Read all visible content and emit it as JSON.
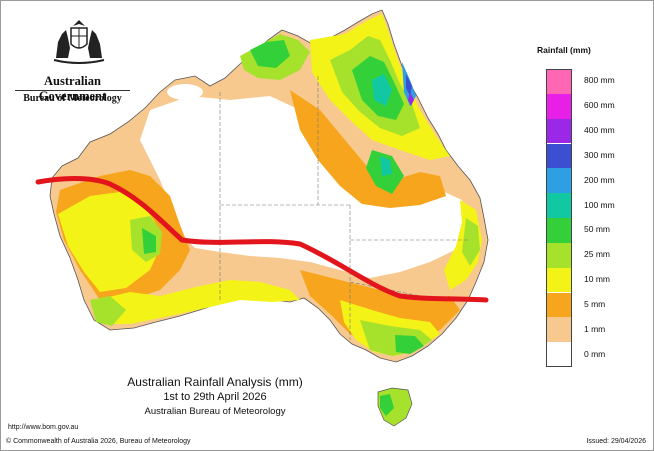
{
  "branding": {
    "crest_icon": "coat-of-arms-icon",
    "government": "Australian Government",
    "bureau": "Bureau of Meteorology"
  },
  "legend": {
    "title": "Rainfall (mm)",
    "items": [
      {
        "label": "800 mm",
        "color": "#ff66b3"
      },
      {
        "label": "600 mm",
        "color": "#e71fe7"
      },
      {
        "label": "400 mm",
        "color": "#9a28e6"
      },
      {
        "label": "300 mm",
        "color": "#3c4fd2"
      },
      {
        "label": "200 mm",
        "color": "#2f9fe3"
      },
      {
        "label": "100 mm",
        "color": "#11c8a3"
      },
      {
        "label": "50 mm",
        "color": "#34d03a"
      },
      {
        "label": "25 mm",
        "color": "#a6e22c"
      },
      {
        "label": "10 mm",
        "color": "#f3f318"
      },
      {
        "label": "5 mm",
        "color": "#f7a51d"
      },
      {
        "label": "1 mm",
        "color": "#f7c98e"
      },
      {
        "label": "0 mm",
        "color": "#ffffff"
      }
    ]
  },
  "caption": {
    "title": "Australian Rainfall Analysis (mm)",
    "period": "1st to 29th April 2026",
    "source": "Australian Bureau of Meteorology"
  },
  "footer": {
    "url": "http://www.bom.gov.au",
    "copyright": "© Commonwealth of Australia 2026, Bureau of Meteorology",
    "issued": "Issued: 29/04/2026"
  },
  "annotation": {
    "line_color": "#e3151c"
  }
}
